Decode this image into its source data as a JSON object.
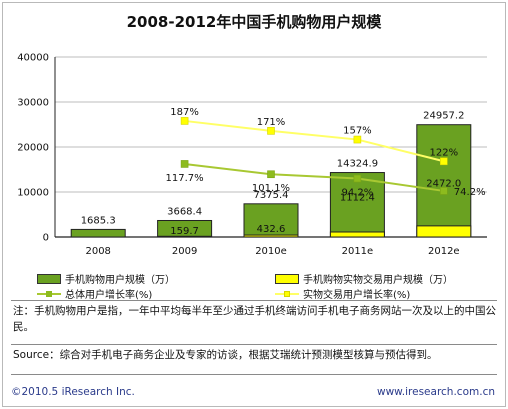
{
  "title": "2008-2012年中国手机购物用户规模",
  "chart_data": {
    "type": "bar",
    "categories": [
      "2008",
      "2009",
      "2010e",
      "2011e",
      "2012e"
    ],
    "series": [
      {
        "name": "手机购物用户规模（万）",
        "kind": "bar",
        "axis": "left",
        "values": [
          1685.3,
          3668.4,
          7375.4,
          14324.9,
          24957.2
        ],
        "labels": [
          "1685.3",
          "3668.4",
          "7375.4",
          "14324.9",
          "24957.2"
        ]
      },
      {
        "name": "手机购物实物交易用户规模（万）",
        "kind": "bar",
        "axis": "left",
        "values": [
          null,
          159.7,
          432.6,
          1112.4,
          2472.0
        ],
        "labels": [
          "",
          "159.7",
          "432.6",
          "1112.4",
          "2472.0"
        ]
      },
      {
        "name": "总体用户增长率(%)",
        "kind": "line",
        "axis": "rate",
        "values": [
          null,
          117.7,
          101.1,
          94.2,
          74.2
        ],
        "labels": [
          "",
          "117.7%",
          "101.1%",
          "94.2%",
          "74.2%"
        ]
      },
      {
        "name": "实物交易用户增长率(%)",
        "kind": "line",
        "axis": "rate",
        "values": [
          null,
          187,
          171,
          157,
          122
        ],
        "labels": [
          "",
          "187%",
          "171%",
          "157%",
          "122%"
        ]
      }
    ],
    "yaxis": {
      "ticks": [
        0,
        10000,
        20000,
        30000,
        40000
      ],
      "tick_labels": [
        "0",
        "10000",
        "20000",
        "30000",
        "40000"
      ],
      "ylim": [
        0,
        40000
      ]
    },
    "rate_scale": {
      "ylim": [
        0,
        290
      ]
    },
    "grid": true,
    "legend": "bottom",
    "xlabel": "",
    "ylabel": ""
  },
  "colors": {
    "bar_green": "#6aa121",
    "bar_yellow": "#ffff00",
    "line_green": "#a8c832",
    "line_yellow": "#ffff66",
    "marker_green": "#8dbb1e",
    "marker_yellow": "#ffff00"
  },
  "footnote": "注：手机购物用户是指，一年中平均每半年至少通过手机终端访问手机电子商务网站一次及以上的中国公民。",
  "source": "Source：综合对手机电子商务企业及专家的访谈，根据艾瑞统计预测模型核算与预估得到。",
  "copyright": "©2010.5 iResearch Inc.",
  "website": "www.iresearch.com.cn"
}
